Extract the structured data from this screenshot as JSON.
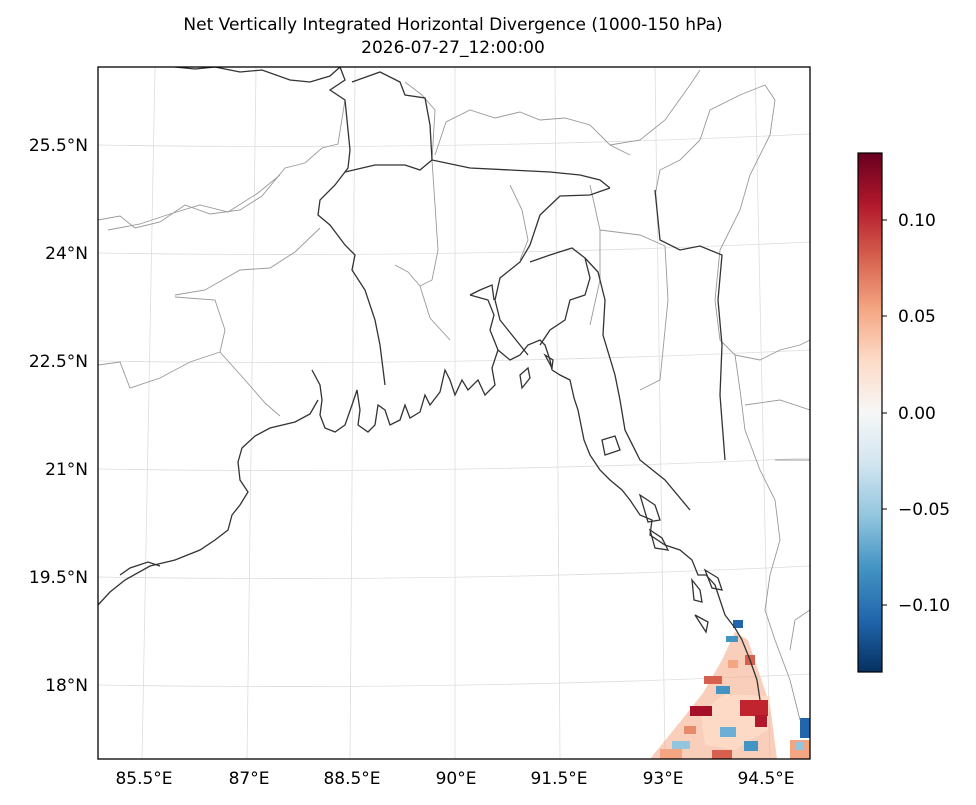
{
  "figure": {
    "title_line1": "Net Vertically Integrated Horizontal Divergence (1000-150 hPa)",
    "title_line2": "2026-07-27_12:00:00"
  },
  "map": {
    "lon_labels": [
      "85.5°E",
      "87°E",
      "88.5°E",
      "90°E",
      "91.5°E",
      "93°E",
      "94.5°E"
    ],
    "lat_labels": [
      "25.5°N",
      "24°N",
      "22.5°N",
      "21°N",
      "19.5°N",
      "18°N"
    ],
    "gridline_color": "#dddddd",
    "coastline_color": "#333333",
    "border_color": "#999999"
  },
  "colorbar": {
    "colormap": "RdBu_r",
    "range": [
      -0.135,
      0.135
    ],
    "tick_labels": [
      "0.10",
      "0.05",
      "0.00",
      "−0.05",
      "−0.10"
    ],
    "tick_values": [
      0.1,
      0.05,
      0.0,
      -0.05,
      -0.1
    ]
  },
  "field": {
    "location": "southeast corner, offshore Arakan coast",
    "description": "small-scale noisy divergence values, strongest positive near 94°E 17.5°N"
  }
}
